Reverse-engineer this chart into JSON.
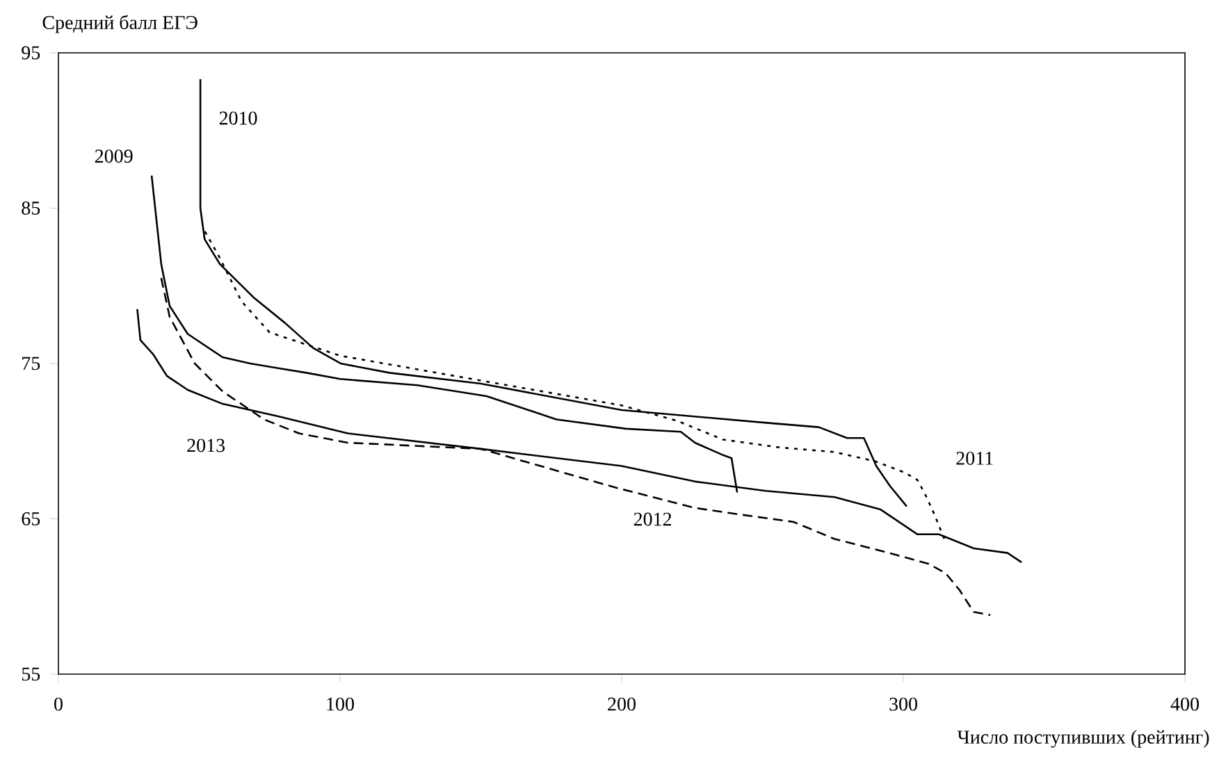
{
  "chart_data": {
    "type": "line",
    "xlabel": "Число поступивших (рейтинг)",
    "ylabel": "Средний балл ЕГЭ",
    "xlim": [
      0,
      400
    ],
    "ylim": [
      55,
      95
    ],
    "xticks": [
      0,
      100,
      200,
      300,
      400
    ],
    "yticks": [
      55,
      65,
      75,
      85,
      95
    ],
    "grid": false,
    "legend": false,
    "marker": "none",
    "series": [
      {
        "name": "2009",
        "color": "#000000",
        "line_style": "solid",
        "x": [
          33.1,
          36.5,
          39.5,
          45.9,
          58.3,
          68.1,
          78,
          88,
          100,
          127.4,
          152,
          176.8,
          201.5,
          221,
          226,
          231,
          236,
          239,
          241
        ],
        "values": [
          87.1,
          81.4,
          78.7,
          76.9,
          75.4,
          75.0,
          74.7,
          74.4,
          74.0,
          73.6,
          72.9,
          71.4,
          70.8,
          70.6,
          69.9,
          69.5,
          69.1,
          68.9,
          66.7
        ]
      },
      {
        "name": "2010",
        "color": "#000000",
        "line_style": "solid",
        "x": [
          50.4,
          50.4,
          51.9,
          57.3,
          69.6,
          80.5,
          90.4,
          100.2,
          117.5,
          150,
          200,
          250,
          270,
          280,
          286,
          290.4,
          295.3,
          301.2
        ],
        "values": [
          93.3,
          85.0,
          83.0,
          81.4,
          79.2,
          77.6,
          76.0,
          75.0,
          74.4,
          73.7,
          72.0,
          71.2,
          70.9,
          70.2,
          70.2,
          68.4,
          67.1,
          65.8
        ]
      },
      {
        "name": "2011",
        "color": "#000000",
        "line_style": "dotted",
        "x": [
          52,
          57,
          65,
          75,
          85,
          100,
          150,
          200,
          219.8,
          236,
          255.8,
          275.6,
          290,
          300.2,
          305,
          307.7,
          311,
          315
        ],
        "values": [
          83.5,
          81.9,
          79,
          77,
          76.4,
          75.5,
          73.9,
          72.3,
          71.3,
          70.1,
          69.6,
          69.3,
          68.7,
          68.0,
          67.5,
          66.6,
          65.3,
          63.5
        ]
      },
      {
        "name": "2012",
        "color": "#000000",
        "line_style": "dashed",
        "x": [
          36.5,
          39.5,
          48.4,
          58.3,
          73,
          85.4,
          102.7,
          150,
          198,
          211,
          226,
          241,
          261,
          275.6,
          295,
          309,
          315,
          320,
          325,
          330.9
        ],
        "values": [
          80.5,
          78.0,
          75.0,
          73.2,
          71.4,
          70.5,
          69.9,
          69.5,
          67.0,
          66.4,
          65.7,
          65.3,
          64.8,
          63.7,
          62.8,
          62.1,
          61.5,
          60.4,
          59.0,
          58.8
        ]
      },
      {
        "name": "2013",
        "color": "#000000",
        "line_style": "solid",
        "x": [
          28,
          29.1,
          33.6,
          38.5,
          45.9,
          58.3,
          78,
          102.7,
          150,
          200,
          226,
          251,
          275.6,
          291.9,
          305,
          312.6,
          325,
          337,
          342
        ],
        "values": [
          78.5,
          76.5,
          75.6,
          74.2,
          73.3,
          72.4,
          71.6,
          70.5,
          69.5,
          68.4,
          67.4,
          66.8,
          66.4,
          65.6,
          64.0,
          64.0,
          63.1,
          62.8,
          62.2
        ]
      }
    ]
  }
}
